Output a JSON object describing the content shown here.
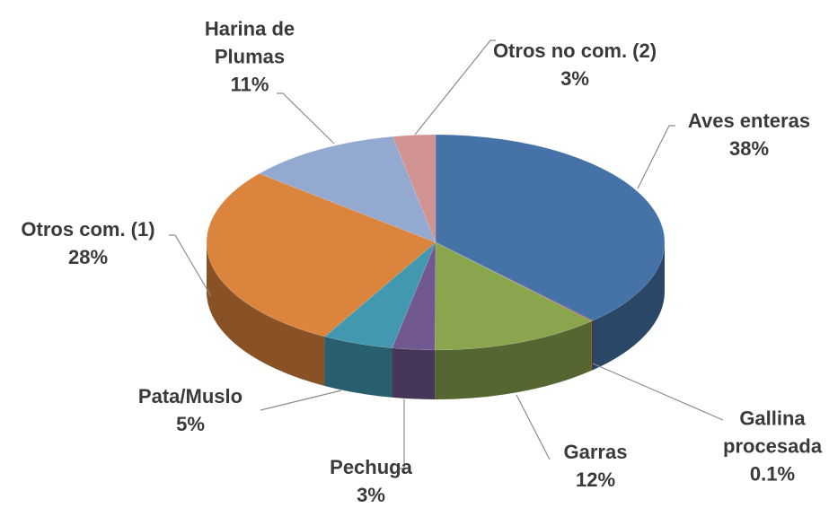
{
  "chart_data": {
    "type": "pie3d",
    "categories": [
      "Aves enteras",
      "Gallina procesada",
      "Garras",
      "Pechuga",
      "Pata/Muslo",
      "Otros com. (1)",
      "Harina de Plumas",
      "Otros no com. (2)"
    ],
    "values": [
      38,
      0.1,
      12,
      3,
      5,
      28,
      11,
      3
    ],
    "value_labels": [
      "38%",
      "0.1%",
      "12%",
      "3%",
      "5%",
      "28%",
      "11%",
      "3%"
    ],
    "colors": [
      "#4572a7",
      "#aa4643",
      "#89a54e",
      "#71588f",
      "#4198af",
      "#db843d",
      "#93a9cf",
      "#d19392"
    ]
  }
}
